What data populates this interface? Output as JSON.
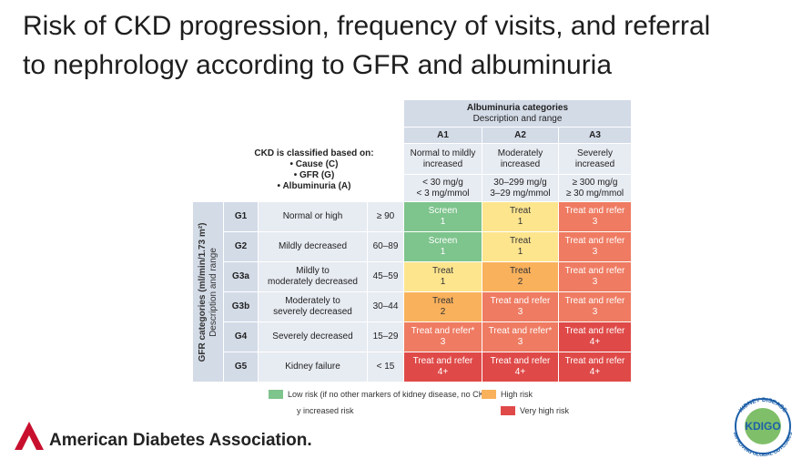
{
  "title": [
    "Risk of CKD progression, frequency of visits, and referral",
    "to nephrology according to GFR and albuminuria"
  ],
  "table": {
    "albuminuria_header": {
      "title": "Albuminuria categories",
      "subtitle": "Description and range"
    },
    "classification": {
      "title": "CKD is classified based on:",
      "items": [
        "• Cause (C)",
        "• GFR (G)",
        "• Albuminuria (A)"
      ]
    },
    "gfr_header": {
      "title": "GFR categories (ml/min/1.73 m²)",
      "subtitle": "Description and range"
    },
    "columns": [
      {
        "code": "A1",
        "description": [
          "Normal to mildly",
          "increased"
        ],
        "range": [
          "< 30 mg/g",
          "< 3 mg/mmol"
        ]
      },
      {
        "code": "A2",
        "description": [
          "Moderately",
          "increased"
        ],
        "range": [
          "30–299 mg/g",
          "3–29 mg/mmol"
        ]
      },
      {
        "code": "A3",
        "description": [
          "Severely",
          "increased"
        ],
        "range": [
          "≥ 300 mg/g",
          "≥ 30 mg/mmol"
        ]
      }
    ],
    "rows": [
      {
        "code": "G1",
        "description": [
          "Normal or high"
        ],
        "range": "≥ 90",
        "cells": [
          {
            "text": "Screen",
            "level": 1,
            "color": "#7ec48d"
          },
          {
            "text": "Treat",
            "level": 1,
            "color": "#fde58e"
          },
          {
            "text": "Treat and refer",
            "level": 3,
            "color": "#ef7b62"
          }
        ]
      },
      {
        "code": "G2",
        "description": [
          "Mildly decreased"
        ],
        "range": "60–89",
        "cells": [
          {
            "text": "Screen",
            "level": 1,
            "color": "#7ec48d"
          },
          {
            "text": "Treat",
            "level": 1,
            "color": "#fde58e"
          },
          {
            "text": "Treat and refer",
            "level": 3,
            "color": "#ef7b62"
          }
        ]
      },
      {
        "code": "G3a",
        "description": [
          "Mildly to",
          "moderately decreased"
        ],
        "range": "45–59",
        "cells": [
          {
            "text": "Treat",
            "level": 1,
            "color": "#fde58e"
          },
          {
            "text": "Treat",
            "level": 2,
            "color": "#f9b15c"
          },
          {
            "text": "Treat and refer",
            "level": 3,
            "color": "#ef7b62"
          }
        ]
      },
      {
        "code": "G3b",
        "description": [
          "Moderately to",
          "severely decreased"
        ],
        "range": "30–44",
        "cells": [
          {
            "text": "Treat",
            "level": 2,
            "color": "#f9b15c"
          },
          {
            "text": "Treat and refer",
            "level": 3,
            "color": "#ef7b62"
          },
          {
            "text": "Treat and refer",
            "level": 3,
            "color": "#ef7b62"
          }
        ]
      },
      {
        "code": "G4",
        "description": [
          "Severely decreased"
        ],
        "range": "15–29",
        "cells": [
          {
            "text": "Treat and refer*",
            "level": 3,
            "color": "#ef7b62"
          },
          {
            "text": "Treat and refer*",
            "level": 3,
            "color": "#ef7b62"
          },
          {
            "text": "Treat and refer",
            "level": "4+",
            "color": "#df4a48"
          }
        ]
      },
      {
        "code": "G5",
        "description": [
          "Kidney failure"
        ],
        "range": "< 15",
        "cells": [
          {
            "text": "Treat and refer",
            "level": "4+",
            "color": "#df4a48"
          },
          {
            "text": "Treat and refer",
            "level": "4+",
            "color": "#df4a48"
          },
          {
            "text": "Treat and refer",
            "level": "4+",
            "color": "#df4a48"
          }
        ]
      }
    ]
  },
  "legend": [
    {
      "label": "Low risk (if no other markers of kidney disease, no CKD)",
      "color": "#7ec48d"
    },
    {
      "label": "High risk",
      "color": "#f9b15c"
    },
    {
      "label": "y increased risk"
    },
    {
      "label": "Very high risk",
      "color": "#df4a48"
    }
  ],
  "footer": {
    "ada": "American Diabetes Association.",
    "kdigo": {
      "name": "KDIGO",
      "top": "KIDNEY DISEASE",
      "bottom": "IMPROVING GLOBAL OUTCOMES"
    }
  }
}
